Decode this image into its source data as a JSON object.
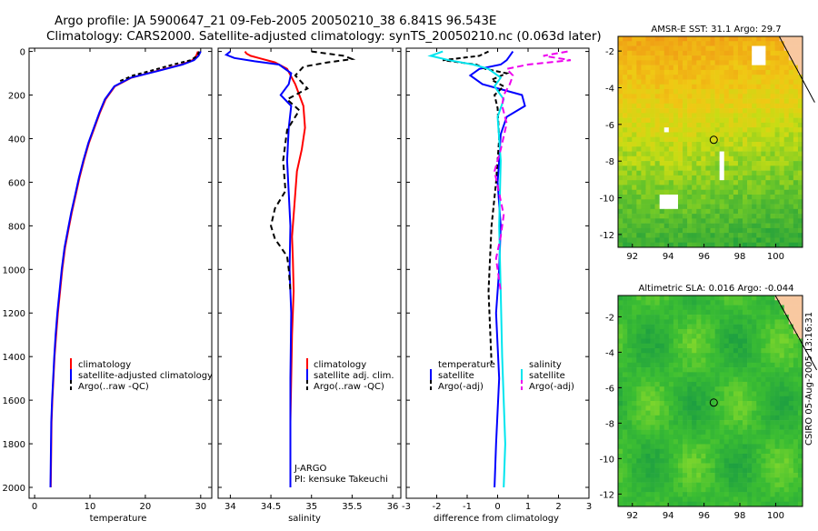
{
  "header": {
    "title1": "Argo profile: JA 5900647_21 09-Feb-2005 20050210_38 6.841S 96.543E",
    "title2": "Climatology: CARS2000. Satellite-adjusted climatology: synTS_20050210.nc (0.063d later)"
  },
  "footer_stamp": "CSIRO 05-Aug-2005 13:16:31",
  "colors": {
    "climatology": "#ff0000",
    "satellite": "#0000ff",
    "argo": "#000000",
    "salinity_sat": "#00e5ee",
    "salinity_argo": "#ee00ee",
    "land": "#f8c8a0"
  },
  "chart_data": [
    {
      "type": "line",
      "id": "temperature",
      "xlabel": "temperature",
      "xlim": [
        -1,
        32
      ],
      "ylim": [
        2050,
        -15
      ],
      "xticks": [
        0,
        10,
        20,
        30
      ],
      "yticks": [
        0,
        200,
        400,
        600,
        800,
        1000,
        1200,
        1400,
        1600,
        1800,
        2000
      ],
      "legend": [
        "climatology",
        "satellite-adjusted climatology",
        "Argo(..raw -QC)"
      ],
      "series": [
        {
          "name": "climatology",
          "color": "#ff0000",
          "dash": "",
          "x": [
            29.5,
            29.2,
            28.5,
            26.5,
            22,
            17.5,
            14.5,
            12.8,
            11.8,
            10.8,
            9.8,
            8.9,
            8.1,
            7.4,
            6.7,
            6.1,
            5.5,
            5.0,
            4.6,
            4.2,
            3.9,
            3.6,
            3.4,
            3.2,
            3.05,
            2.9
          ],
          "y": [
            0,
            20,
            40,
            60,
            90,
            120,
            160,
            220,
            280,
            350,
            420,
            500,
            580,
            660,
            740,
            820,
            900,
            1000,
            1100,
            1200,
            1300,
            1400,
            1500,
            1600,
            1700,
            2000
          ]
        },
        {
          "name": "satellite-adjusted climatology",
          "color": "#0000ff",
          "dash": "",
          "x": [
            30.0,
            29.6,
            28.8,
            26.7,
            22.2,
            17.4,
            14.4,
            12.7,
            11.7,
            10.7,
            9.7,
            8.8,
            8.0,
            7.3,
            6.6,
            6.0,
            5.4,
            4.9,
            4.5,
            4.1,
            3.8,
            3.55,
            3.35,
            3.15,
            3.0,
            2.85
          ],
          "y": [
            0,
            20,
            40,
            60,
            90,
            120,
            160,
            220,
            280,
            350,
            420,
            500,
            580,
            660,
            740,
            820,
            900,
            1000,
            1100,
            1200,
            1300,
            1400,
            1500,
            1600,
            1700,
            2000
          ]
        },
        {
          "name": "Argo(..raw -QC)",
          "color": "#000000",
          "dash": "4,3",
          "x": [
            29.7,
            29.4,
            28.2,
            25.0,
            21.5,
            17.8,
            15.0
          ],
          "y": [
            0,
            20,
            40,
            60,
            85,
            110,
            140
          ]
        }
      ]
    },
    {
      "type": "line",
      "id": "salinity",
      "xlabel": "salinity",
      "xlim": [
        33.85,
        36.1
      ],
      "ylim": [
        2050,
        -15
      ],
      "xticks": [
        34,
        34.5,
        35,
        35.5,
        36
      ],
      "xticklabels": [
        "34",
        "34.5",
        "35",
        "35.5",
        "36"
      ],
      "legend": [
        "climatology",
        "satellite adj. clim.",
        "Argo(..raw -QC)"
      ],
      "annotations": [
        "J-ARGO",
        "PI: kensuke Takeuchi"
      ],
      "series": [
        {
          "name": "climatology",
          "color": "#ff0000",
          "dash": "",
          "x": [
            34.18,
            34.2,
            34.25,
            34.35,
            34.55,
            34.7,
            34.8,
            34.9,
            34.92,
            34.88,
            34.82,
            34.8,
            34.78,
            34.76,
            34.77,
            34.78,
            34.76,
            34.75,
            34.74,
            34.74
          ],
          "y": [
            0,
            10,
            20,
            30,
            50,
            80,
            150,
            250,
            350,
            450,
            550,
            650,
            750,
            850,
            950,
            1100,
            1300,
            1500,
            1700,
            2000
          ]
        },
        {
          "name": "satellite adj. clim.",
          "color": "#0000ff",
          "dash": "",
          "x": [
            34.0,
            33.95,
            34.05,
            34.3,
            34.6,
            34.75,
            34.72,
            34.62,
            34.75,
            34.72,
            34.7,
            34.72,
            34.74,
            34.73,
            34.75,
            34.74,
            34.74,
            34.74
          ],
          "y": [
            0,
            15,
            30,
            45,
            60,
            100,
            150,
            200,
            250,
            350,
            500,
            650,
            800,
            1000,
            1200,
            1500,
            1800,
            2000
          ]
        },
        {
          "name": "Argo(..raw -QC)",
          "color": "#000000",
          "dash": "6,4",
          "x": [
            35.0,
            35.4,
            35.5,
            35.2,
            34.9,
            34.8,
            34.95,
            34.7,
            34.85,
            34.7,
            34.65,
            34.68,
            34.55,
            34.5,
            34.55,
            34.7,
            34.72,
            34.74
          ],
          "y": [
            0,
            20,
            35,
            50,
            70,
            110,
            170,
            220,
            270,
            360,
            500,
            640,
            720,
            800,
            860,
            940,
            1000,
            1100
          ]
        }
      ]
    },
    {
      "type": "line",
      "id": "difference",
      "xlabel": "difference from climatology",
      "xlim": [
        -3,
        3
      ],
      "ylim": [
        2050,
        -15
      ],
      "xticks": [
        -3,
        -2,
        -1,
        0,
        1,
        2,
        3
      ],
      "legend_left_title": "temperature",
      "legend_left": [
        "satellite",
        "Argo(-adj)"
      ],
      "legend_right_title": "salinity",
      "legend_right": [
        "satellite",
        "Argo(-adj)"
      ],
      "series": [
        {
          "name": "satellite",
          "color": "#0000ff",
          "dash": "",
          "x": [
            0.5,
            0.4,
            0.3,
            0.1,
            -0.6,
            -0.9,
            -0.5,
            0.8,
            0.9,
            0.3,
            0.1,
            0.05,
            0.0,
            0.1,
            0.05,
            -0.05,
            0.05,
            -0.05,
            -0.1
          ],
          "y": [
            0,
            20,
            40,
            60,
            80,
            110,
            150,
            200,
            250,
            300,
            380,
            500,
            600,
            800,
            1000,
            1200,
            1500,
            1800,
            2000
          ]
        },
        {
          "name": "Argo(-adj)",
          "color": "#000000",
          "dash": "5,3",
          "x": [
            -0.3,
            -0.6,
            -1.8,
            -0.7,
            -0.4,
            0.3,
            -0.2,
            0.2,
            -0.1,
            0.0,
            0.05,
            -0.05,
            -0.2,
            -0.3,
            -0.2
          ],
          "y": [
            0,
            20,
            40,
            60,
            80,
            100,
            130,
            160,
            200,
            260,
            400,
            600,
            800,
            1100,
            1430
          ]
        },
        {
          "name": "satellite",
          "color": "#00e5ee",
          "dash": "",
          "x": [
            -1.8,
            -2.2,
            -1.6,
            -0.8,
            -0.3,
            0.1,
            -0.1,
            0.2,
            0.0,
            0.1,
            0.05,
            0.1,
            0.15,
            0.2,
            0.25,
            0.2
          ],
          "y": [
            0,
            20,
            40,
            60,
            80,
            120,
            160,
            220,
            300,
            500,
            800,
            1100,
            1400,
            1600,
            1800,
            2000
          ]
        },
        {
          "name": "Argo(-adj)",
          "color": "#ee00ee",
          "dash": "7,4",
          "x": [
            2.3,
            1.5,
            2.4,
            1.0,
            0.3,
            0.5,
            0.4,
            0.2,
            0.15,
            0.3,
            0.1,
            -0.1,
            0.05,
            0.2,
            0.1,
            -0.05,
            0.1
          ],
          "y": [
            0,
            20,
            40,
            60,
            80,
            110,
            150,
            200,
            250,
            330,
            450,
            550,
            650,
            750,
            850,
            950,
            1100
          ]
        }
      ]
    },
    {
      "type": "heatmap",
      "id": "sst-map",
      "title": "AMSR-E SST: 31.1 Argo: 29.7",
      "xlim": [
        91.2,
        101.5
      ],
      "ylim": [
        -12.7,
        -1.2
      ],
      "xticks": [
        92,
        94,
        96,
        98,
        100
      ],
      "yticks": [
        -2,
        -4,
        -6,
        -8,
        -10,
        -12
      ],
      "argo_location": [
        96.543,
        -6.841
      ]
    },
    {
      "type": "heatmap",
      "id": "sla-map",
      "title": "Altimetric SLA: 0.016 Argo: -0.044",
      "xlim": [
        91.2,
        101.5
      ],
      "ylim": [
        -12.7,
        -0.8
      ],
      "xticks": [
        92,
        94,
        96,
        98,
        100
      ],
      "yticks": [
        -2,
        -4,
        -6,
        -8,
        -10,
        -12
      ],
      "argo_location": [
        96.543,
        -6.841
      ]
    }
  ]
}
